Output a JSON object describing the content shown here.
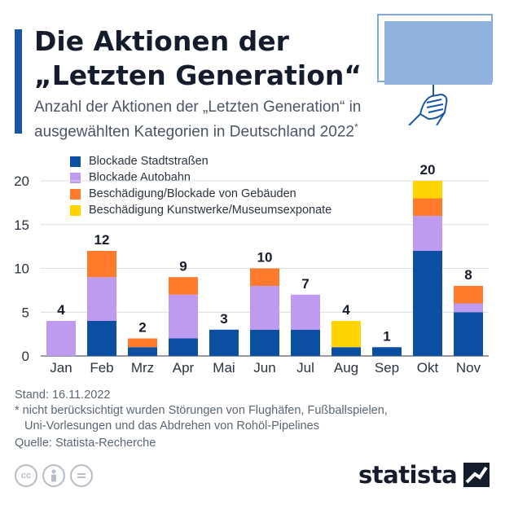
{
  "header": {
    "title_line1": "Die Aktionen der",
    "title_line2": "„Letzten Generation“",
    "subtitle": "Anzahl der Aktionen der „Letzten Generation“ in ausgewählten Kategorien in Deutschland 2022",
    "subtitle_mark": "*",
    "accent_color": "#1a56a6"
  },
  "colors": {
    "stadt": "#0a4fa1",
    "autobahn": "#be9bf0",
    "gebaeude": "#ff7a2b",
    "kunst": "#ffd400",
    "axis_text": "#2b3340",
    "grid": "#d9dde3"
  },
  "chart_data": {
    "type": "bar",
    "stacked": true,
    "categories": [
      "Jan",
      "Feb",
      "Mrz",
      "Apr",
      "Mai",
      "Jun",
      "Jul",
      "Aug",
      "Sep",
      "Okt",
      "Nov"
    ],
    "series": [
      {
        "name": "Blockade Stadtstraßen",
        "color": "#0a4fa1",
        "values": [
          0,
          4,
          1,
          2,
          3,
          3,
          3,
          1,
          1,
          12,
          5
        ]
      },
      {
        "name": "Blockade Autobahn",
        "color": "#be9bf0",
        "values": [
          4,
          5,
          0,
          5,
          0,
          5,
          4,
          0,
          0,
          4,
          1
        ]
      },
      {
        "name": "Beschädigung/Blockade von Gebäuden",
        "color": "#ff7a2b",
        "values": [
          0,
          3,
          1,
          2,
          0,
          2,
          0,
          0,
          0,
          2,
          2
        ]
      },
      {
        "name": "Beschädigung Kunstwerke/Museumsexponate",
        "color": "#ffd400",
        "values": [
          0,
          0,
          0,
          0,
          0,
          0,
          0,
          3,
          0,
          2,
          0
        ]
      }
    ],
    "totals": [
      4,
      12,
      2,
      9,
      3,
      10,
      7,
      4,
      1,
      20,
      8
    ],
    "yticks": [
      0,
      5,
      10,
      15,
      20
    ],
    "ylim": [
      0,
      20
    ],
    "grid": true,
    "legend_position": "top-left"
  },
  "footer": {
    "stand": "Stand: 16.11.2022",
    "note_line1": "* nicht berücksichtigt wurden Störungen von Flughäfen, Fußballspielen,",
    "note_line2": "Uni-Vorlesungen und das Abdrehen von Rohöl-Pipelines",
    "source": "Quelle: Statista-Recherche"
  },
  "license_icons": [
    "cc",
    "by",
    "="
  ],
  "brand": {
    "name": "statista",
    "icon": "statista-logo-mark"
  }
}
